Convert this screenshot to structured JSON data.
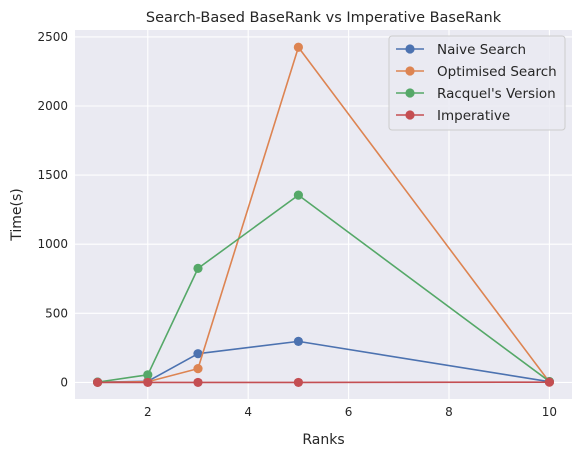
{
  "chart_data": {
    "type": "line",
    "title": "Search-Based BaseRank vs Imperative BaseRank",
    "xlabel": "Ranks",
    "ylabel": "Time(s)",
    "xlim": [
      0.55,
      10.45
    ],
    "ylim": [
      -120,
      2550
    ],
    "xticks": [
      2,
      4,
      6,
      8,
      10
    ],
    "xtick_labels": [
      "2",
      "4",
      "6",
      "8",
      "10"
    ],
    "yticks": [
      0,
      500,
      1000,
      1500,
      2000,
      2500
    ],
    "ytick_labels": [
      "0",
      "500",
      "1000",
      "1500",
      "2000",
      "2500"
    ],
    "grid": true,
    "legend_position": "top-right",
    "series": [
      {
        "name": "Naive Search",
        "color": "#4c72b0",
        "x": [
          1,
          2,
          3,
          5,
          10
        ],
        "y": [
          2,
          8,
          208,
          297,
          5
        ]
      },
      {
        "name": "Optimised Search",
        "color": "#dd8452",
        "x": [
          1,
          2,
          3,
          5,
          10
        ],
        "y": [
          1,
          5,
          100,
          2425,
          3
        ]
      },
      {
        "name": "Racquel's Version",
        "color": "#55a868",
        "x": [
          1,
          2,
          3,
          5,
          10
        ],
        "y": [
          2,
          55,
          825,
          1355,
          7
        ]
      },
      {
        "name": "Imperative",
        "color": "#c44e52",
        "x": [
          1,
          2,
          3,
          5,
          10
        ],
        "y": [
          0,
          0,
          0,
          0,
          2
        ]
      }
    ]
  }
}
